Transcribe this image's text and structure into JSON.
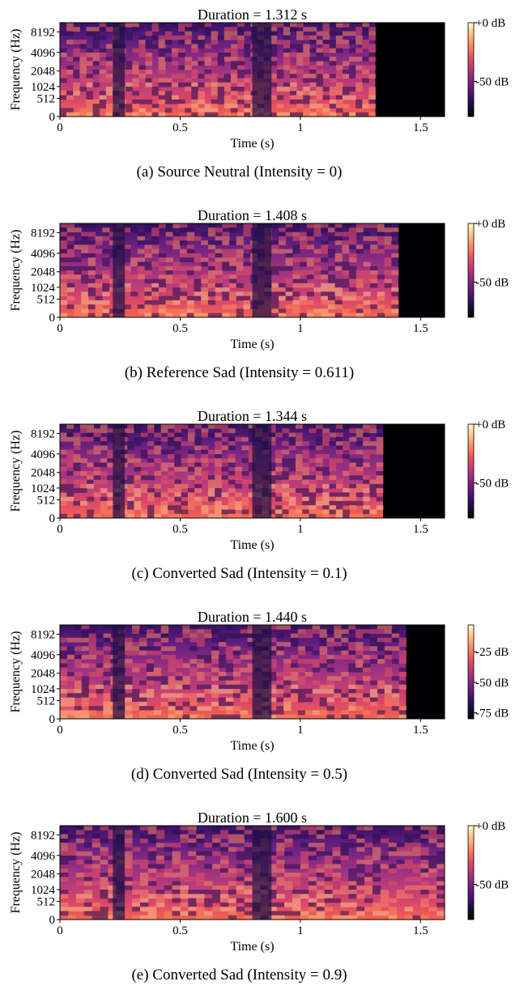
{
  "chart_data": [
    {
      "type": "heatmap",
      "title": "Duration = 1.312 s",
      "caption": "(a) Source Neutral (Intensity = 0)",
      "xlabel": "Time (s)",
      "ylabel": "Frequency (Hz)",
      "xticks": [
        0,
        0.5,
        1,
        1.5
      ],
      "xtick_labels": [
        "0",
        "0.5",
        "1",
        "1.5"
      ],
      "yticks": [
        0,
        512,
        1024,
        2048,
        4096,
        8192
      ],
      "xlim": [
        0,
        1.6
      ],
      "duration_s": 1.312,
      "yscale": "mel",
      "colormap": "magma",
      "colorbar_ticks_db": [
        0,
        -50
      ],
      "colorbar_labels": [
        "+0 dB",
        "-50 dB"
      ],
      "colorbar_range_db": [
        -80,
        0
      ]
    },
    {
      "type": "heatmap",
      "title": "Duration = 1.408 s",
      "caption": "(b) Reference Sad (Intensity = 0.611)",
      "xlabel": "Time (s)",
      "ylabel": "Frequency (Hz)",
      "xticks": [
        0,
        0.5,
        1,
        1.5
      ],
      "xtick_labels": [
        "0",
        "0.5",
        "1",
        "1.5"
      ],
      "yticks": [
        0,
        512,
        1024,
        2048,
        4096,
        8192
      ],
      "xlim": [
        0,
        1.6
      ],
      "duration_s": 1.408,
      "yscale": "mel",
      "colormap": "magma",
      "colorbar_ticks_db": [
        0,
        -50
      ],
      "colorbar_labels": [
        "+0 dB",
        "-50 dB"
      ],
      "colorbar_range_db": [
        -80,
        0
      ]
    },
    {
      "type": "heatmap",
      "title": "Duration = 1.344 s",
      "caption": "(c) Converted Sad (Intensity = 0.1)",
      "xlabel": "Time (s)",
      "ylabel": "Frequency (Hz)",
      "xticks": [
        0,
        0.5,
        1,
        1.5
      ],
      "xtick_labels": [
        "0",
        "0.5",
        "1",
        "1.5"
      ],
      "yticks": [
        0,
        512,
        1024,
        2048,
        4096,
        8192
      ],
      "xlim": [
        0,
        1.6
      ],
      "duration_s": 1.344,
      "yscale": "mel",
      "colormap": "magma",
      "colorbar_ticks_db": [
        0,
        -50
      ],
      "colorbar_labels": [
        "+0 dB",
        "-50 dB"
      ],
      "colorbar_range_db": [
        -80,
        0
      ]
    },
    {
      "type": "heatmap",
      "title": "Duration = 1.440 s",
      "caption": "(d) Converted Sad (Intensity = 0.5)",
      "xlabel": "Time (s)",
      "ylabel": "Frequency (Hz)",
      "xticks": [
        0,
        0.5,
        1,
        1.5
      ],
      "xtick_labels": [
        "0",
        "0.5",
        "1",
        "1.5"
      ],
      "yticks": [
        0,
        512,
        1024,
        2048,
        4096,
        8192
      ],
      "xlim": [
        0,
        1.6
      ],
      "duration_s": 1.44,
      "yscale": "mel",
      "colormap": "magma",
      "colorbar_ticks_db": [
        -25,
        -50,
        -75
      ],
      "colorbar_labels": [
        "-25 dB",
        "-50 dB",
        "-75 dB"
      ],
      "colorbar_range_db": [
        -80,
        -3
      ]
    },
    {
      "type": "heatmap",
      "title": "Duration = 1.600 s",
      "caption": "(e) Converted Sad (Intensity = 0.9)",
      "xlabel": "Time (s)",
      "ylabel": "Frequency (Hz)",
      "xticks": [
        0,
        0.5,
        1,
        1.5
      ],
      "xtick_labels": [
        "0",
        "0.5",
        "1",
        "1.5"
      ],
      "yticks": [
        0,
        512,
        1024,
        2048,
        4096,
        8192
      ],
      "xlim": [
        0,
        1.6
      ],
      "duration_s": 1.6,
      "yscale": "mel",
      "colormap": "magma",
      "colorbar_ticks_db": [
        0,
        -50
      ],
      "colorbar_labels": [
        "+0 dB",
        "-50 dB"
      ],
      "colorbar_range_db": [
        -80,
        0
      ]
    }
  ]
}
